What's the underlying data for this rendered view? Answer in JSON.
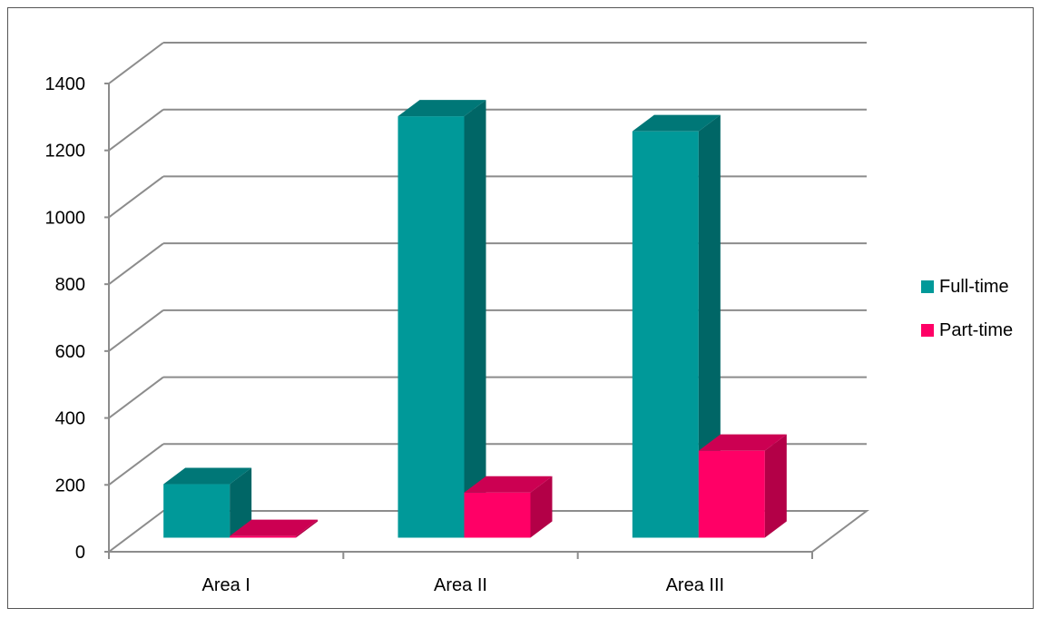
{
  "chart_data": {
    "type": "bar",
    "style": "3d-clustered-column",
    "categories": [
      "Area I",
      "Area II",
      "Area III"
    ],
    "series": [
      {
        "name": "Full-time",
        "values": [
          160,
          1260,
          1215
        ],
        "color": "#009999",
        "side_color": "#006666",
        "top_color": "#007777"
      },
      {
        "name": "Part-time",
        "values": [
          5,
          135,
          260
        ],
        "color": "#FF0066",
        "side_color": "#B30047",
        "top_color": "#CC0052"
      }
    ],
    "title": "",
    "xlabel": "",
    "ylabel": "",
    "ylim": [
      0,
      1400
    ],
    "yticks": [
      "0",
      "200",
      "400",
      "600",
      "800",
      "1000",
      "1200",
      "1400"
    ],
    "grid": true,
    "legend": "right"
  }
}
